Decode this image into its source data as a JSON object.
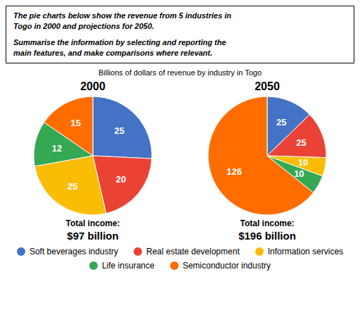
{
  "title": "The pie charts below show the revenue from 5 industries in\nTogo in 2000 and projections for 2050.\n\nSummarise the information by selecting and reporting the\nmain features, and make comparisons where relevant.",
  "subtitle": "Billions of dollars of revenue by industry in Togo",
  "legend": "bottom",
  "chart_data": [
    {
      "type": "pie",
      "title": "2000",
      "categories": [
        "Soft beverages industry",
        "Real estate development",
        "Information services",
        "Life insurance",
        "Semiconductor industry"
      ],
      "values": [
        25,
        20,
        25,
        12,
        15
      ],
      "colors": [
        "#4472C4",
        "#EA4335",
        "#FBBC04",
        "#34A853",
        "#FF6D00"
      ],
      "data_labels": true,
      "annotations": [
        "Total income:",
        "$97 billion"
      ]
    },
    {
      "type": "pie",
      "title": "2050",
      "categories": [
        "Soft beverages industry",
        "Real estate development",
        "Information services",
        "Life insurance",
        "Semiconductor industry"
      ],
      "values": [
        25,
        25,
        10,
        10,
        126
      ],
      "colors": [
        "#4472C4",
        "#EA4335",
        "#FBBC04",
        "#34A853",
        "#FF6D00"
      ],
      "data_labels": true,
      "annotations": [
        "Total income:",
        "$196 billion"
      ]
    }
  ]
}
